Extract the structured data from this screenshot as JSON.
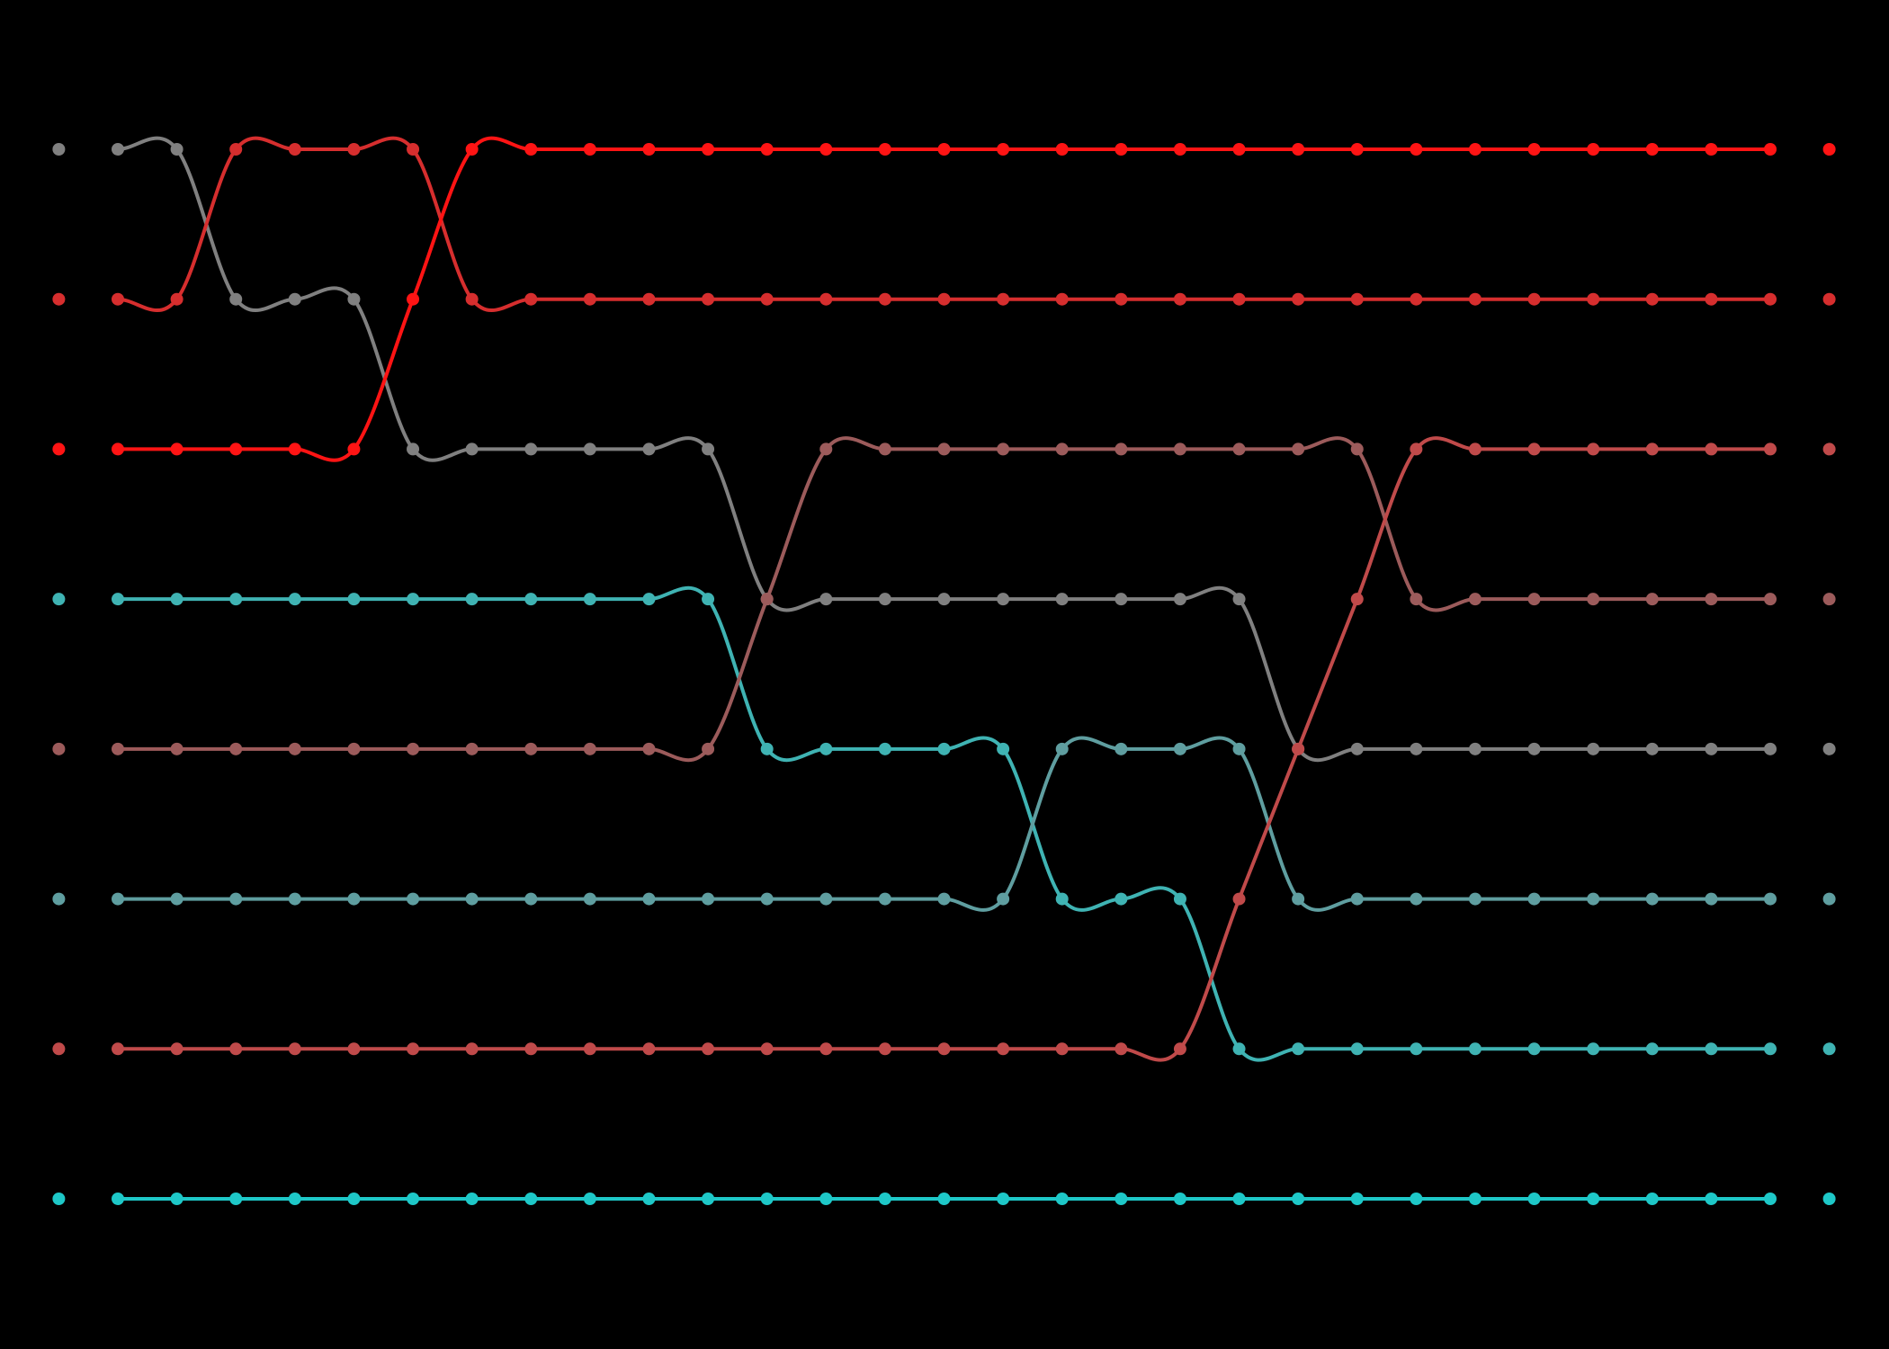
{
  "chart_data": {
    "type": "line",
    "subtype": "bump",
    "x": [
      1,
      2,
      3,
      4,
      5,
      6,
      7,
      8,
      9,
      10,
      11,
      12,
      13,
      14,
      15,
      16,
      17,
      18,
      19,
      20,
      21,
      22,
      23,
      24,
      25,
      26,
      27,
      28,
      29
    ],
    "ylim": [
      1,
      8
    ],
    "y_inverted": true,
    "grid": false,
    "legend": "none",
    "background": "#000000",
    "series": [
      {
        "color": "#808080",
        "ranks": [
          1,
          1,
          2,
          2,
          2,
          3,
          3,
          3,
          3,
          3,
          3,
          4,
          4,
          4,
          4,
          4,
          4,
          4,
          4,
          4,
          5,
          5,
          5,
          5,
          5,
          5,
          5,
          5,
          5
        ]
      },
      {
        "color": "#d62e2e",
        "ranks": [
          2,
          2,
          1,
          1,
          1,
          1,
          2,
          2,
          2,
          2,
          2,
          2,
          2,
          2,
          2,
          2,
          2,
          2,
          2,
          2,
          2,
          2,
          2,
          2,
          2,
          2,
          2,
          2,
          2
        ]
      },
      {
        "color": "#ff1414",
        "ranks": [
          3,
          3,
          3,
          3,
          3,
          2,
          1,
          1,
          1,
          1,
          1,
          1,
          1,
          1,
          1,
          1,
          1,
          1,
          1,
          1,
          1,
          1,
          1,
          1,
          1,
          1,
          1,
          1,
          1
        ]
      },
      {
        "color": "#3fb3b3",
        "ranks": [
          4,
          4,
          4,
          4,
          4,
          4,
          4,
          4,
          4,
          4,
          4,
          5,
          5,
          5,
          5,
          5,
          6,
          6,
          6,
          7,
          7,
          7,
          7,
          7,
          7,
          7,
          7,
          7,
          7
        ]
      },
      {
        "color": "#9c5b5b",
        "ranks": [
          5,
          5,
          5,
          5,
          5,
          5,
          5,
          5,
          5,
          5,
          5,
          4,
          3,
          3,
          3,
          3,
          3,
          3,
          3,
          3,
          3,
          3,
          4,
          4,
          4,
          4,
          4,
          4,
          4
        ]
      },
      {
        "color": "#5f9ea0",
        "ranks": [
          6,
          6,
          6,
          6,
          6,
          6,
          6,
          6,
          6,
          6,
          6,
          6,
          6,
          6,
          6,
          6,
          5,
          5,
          5,
          5,
          6,
          6,
          6,
          6,
          6,
          6,
          6,
          6,
          6
        ]
      },
      {
        "color": "#c04a4a",
        "ranks": [
          7,
          7,
          7,
          7,
          7,
          7,
          7,
          7,
          7,
          7,
          7,
          7,
          7,
          7,
          7,
          7,
          7,
          7,
          7,
          6,
          5,
          4,
          3,
          3,
          3,
          3,
          3,
          3,
          3
        ]
      },
      {
        "color": "#1ec8c8",
        "ranks": [
          8,
          8,
          8,
          8,
          8,
          8,
          8,
          8,
          8,
          8,
          8,
          8,
          8,
          8,
          8,
          8,
          8,
          8,
          8,
          8,
          8,
          8,
          8,
          8,
          8,
          8,
          8,
          8,
          8
        ]
      }
    ]
  }
}
